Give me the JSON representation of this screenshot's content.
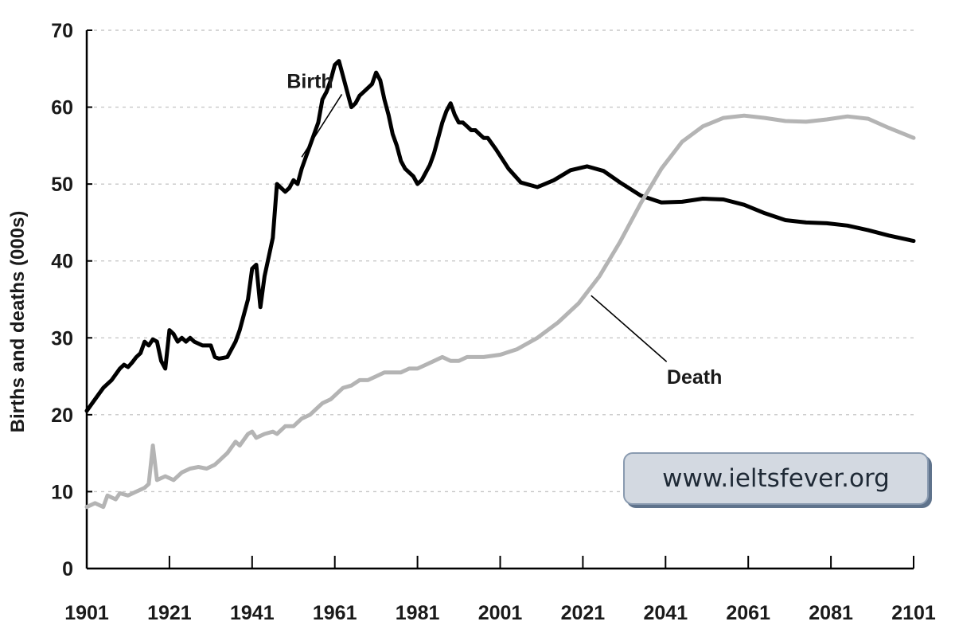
{
  "chart_data": {
    "type": "line",
    "ylabel": "Births and deaths (000s)",
    "ylim": [
      0,
      70
    ],
    "yticks": [
      0,
      10,
      20,
      30,
      40,
      50,
      60,
      70
    ],
    "xlim": [
      1901,
      2101
    ],
    "xticks": [
      1901,
      1921,
      1941,
      1961,
      1981,
      2001,
      2021,
      2041,
      2061,
      2081,
      2101
    ],
    "grid": true,
    "series": [
      {
        "name": "Birth",
        "color": "#000000",
        "points": [
          [
            1901,
            20.5
          ],
          [
            1903,
            22
          ],
          [
            1905,
            23.5
          ],
          [
            1907,
            24.5
          ],
          [
            1909,
            26
          ],
          [
            1910,
            26.5
          ],
          [
            1911,
            26.2
          ],
          [
            1912,
            26.8
          ],
          [
            1913,
            27.5
          ],
          [
            1914,
            28
          ],
          [
            1915,
            29.5
          ],
          [
            1916,
            29
          ],
          [
            1917,
            29.8
          ],
          [
            1918,
            29.5
          ],
          [
            1919,
            27
          ],
          [
            1920,
            26
          ],
          [
            1921,
            31
          ],
          [
            1922,
            30.5
          ],
          [
            1923,
            29.5
          ],
          [
            1924,
            30
          ],
          [
            1925,
            29.5
          ],
          [
            1926,
            30
          ],
          [
            1927,
            29.5
          ],
          [
            1929,
            29
          ],
          [
            1931,
            29
          ],
          [
            1932,
            27.5
          ],
          [
            1933,
            27.3
          ],
          [
            1935,
            27.5
          ],
          [
            1937,
            29.5
          ],
          [
            1938,
            31
          ],
          [
            1939,
            33
          ],
          [
            1940,
            35
          ],
          [
            1941,
            39
          ],
          [
            1942,
            39.5
          ],
          [
            1943,
            34
          ],
          [
            1944,
            38
          ],
          [
            1945,
            40.5
          ],
          [
            1946,
            43
          ],
          [
            1947,
            50
          ],
          [
            1948,
            49.5
          ],
          [
            1949,
            49
          ],
          [
            1950,
            49.5
          ],
          [
            1951,
            50.5
          ],
          [
            1952,
            50
          ],
          [
            1953,
            52
          ],
          [
            1954,
            53.5
          ],
          [
            1955,
            55
          ],
          [
            1956,
            56.5
          ],
          [
            1957,
            58
          ],
          [
            1958,
            61
          ],
          [
            1959,
            62
          ],
          [
            1960,
            63.5
          ],
          [
            1961,
            65.5
          ],
          [
            1962,
            66
          ],
          [
            1963,
            64
          ],
          [
            1964,
            62
          ],
          [
            1965,
            60
          ],
          [
            1966,
            60.5
          ],
          [
            1967,
            61.5
          ],
          [
            1968,
            62
          ],
          [
            1969,
            62.5
          ],
          [
            1970,
            63
          ],
          [
            1971,
            64.5
          ],
          [
            1972,
            63.5
          ],
          [
            1973,
            61
          ],
          [
            1974,
            59
          ],
          [
            1975,
            56.5
          ],
          [
            1976,
            55
          ],
          [
            1977,
            53
          ],
          [
            1978,
            52
          ],
          [
            1979,
            51.5
          ],
          [
            1980,
            51
          ],
          [
            1981,
            50
          ],
          [
            1982,
            50.5
          ],
          [
            1983,
            51.5
          ],
          [
            1984,
            52.5
          ],
          [
            1985,
            54
          ],
          [
            1986,
            56
          ],
          [
            1987,
            58
          ],
          [
            1988,
            59.5
          ],
          [
            1989,
            60.5
          ],
          [
            1990,
            59
          ],
          [
            1991,
            58
          ],
          [
            1992,
            58
          ],
          [
            1993,
            57.5
          ],
          [
            1994,
            57
          ],
          [
            1995,
            57
          ],
          [
            1996,
            56.5
          ],
          [
            1997,
            56
          ],
          [
            1998,
            56
          ],
          [
            2000,
            54.5
          ],
          [
            2003,
            52
          ],
          [
            2006,
            50.2
          ],
          [
            2010,
            49.6
          ],
          [
            2014,
            50.5
          ],
          [
            2018,
            51.8
          ],
          [
            2022,
            52.3
          ],
          [
            2026,
            51.7
          ],
          [
            2030,
            50.2
          ],
          [
            2035,
            48.5
          ],
          [
            2040,
            47.6
          ],
          [
            2045,
            47.7
          ],
          [
            2050,
            48.1
          ],
          [
            2055,
            48
          ],
          [
            2060,
            47.3
          ],
          [
            2065,
            46.2
          ],
          [
            2070,
            45.3
          ],
          [
            2075,
            45
          ],
          [
            2080,
            44.9
          ],
          [
            2085,
            44.6
          ],
          [
            2090,
            44
          ],
          [
            2095,
            43.3
          ],
          [
            2101,
            42.6
          ]
        ]
      },
      {
        "name": "Death",
        "color": "#b4b4b4",
        "points": [
          [
            1901,
            8
          ],
          [
            1903,
            8.5
          ],
          [
            1905,
            8
          ],
          [
            1906,
            9.5
          ],
          [
            1908,
            9
          ],
          [
            1909,
            9.8
          ],
          [
            1911,
            9.5
          ],
          [
            1913,
            10
          ],
          [
            1915,
            10.5
          ],
          [
            1916,
            11
          ],
          [
            1917,
            16
          ],
          [
            1918,
            11.5
          ],
          [
            1920,
            12
          ],
          [
            1922,
            11.5
          ],
          [
            1924,
            12.5
          ],
          [
            1926,
            13
          ],
          [
            1928,
            13.2
          ],
          [
            1930,
            13
          ],
          [
            1932,
            13.5
          ],
          [
            1933,
            14
          ],
          [
            1935,
            15
          ],
          [
            1937,
            16.5
          ],
          [
            1938,
            16
          ],
          [
            1940,
            17.5
          ],
          [
            1941,
            17.8
          ],
          [
            1942,
            17
          ],
          [
            1944,
            17.5
          ],
          [
            1946,
            17.8
          ],
          [
            1947,
            17.5
          ],
          [
            1949,
            18.5
          ],
          [
            1951,
            18.5
          ],
          [
            1953,
            19.5
          ],
          [
            1955,
            20
          ],
          [
            1957,
            21
          ],
          [
            1958,
            21.5
          ],
          [
            1960,
            22
          ],
          [
            1961,
            22.5
          ],
          [
            1963,
            23.5
          ],
          [
            1965,
            23.8
          ],
          [
            1967,
            24.5
          ],
          [
            1969,
            24.5
          ],
          [
            1971,
            25
          ],
          [
            1973,
            25.5
          ],
          [
            1975,
            25.5
          ],
          [
            1977,
            25.5
          ],
          [
            1979,
            26
          ],
          [
            1981,
            26
          ],
          [
            1983,
            26.5
          ],
          [
            1985,
            27
          ],
          [
            1987,
            27.5
          ],
          [
            1989,
            27
          ],
          [
            1991,
            27
          ],
          [
            1993,
            27.5
          ],
          [
            1995,
            27.5
          ],
          [
            1997,
            27.5
          ],
          [
            2001,
            27.8
          ],
          [
            2005,
            28.5
          ],
          [
            2010,
            30
          ],
          [
            2015,
            32
          ],
          [
            2020,
            34.5
          ],
          [
            2025,
            38
          ],
          [
            2030,
            42.5
          ],
          [
            2035,
            47.5
          ],
          [
            2040,
            52
          ],
          [
            2045,
            55.5
          ],
          [
            2050,
            57.5
          ],
          [
            2055,
            58.6
          ],
          [
            2060,
            58.9
          ],
          [
            2065,
            58.6
          ],
          [
            2070,
            58.2
          ],
          [
            2075,
            58.1
          ],
          [
            2080,
            58.4
          ],
          [
            2085,
            58.8
          ],
          [
            2090,
            58.5
          ],
          [
            2095,
            57.3
          ],
          [
            2101,
            56
          ]
        ]
      }
    ],
    "annotations": [
      {
        "text": "Birth",
        "series": "Birth",
        "label_at": [
          1955,
          62.5
        ],
        "point_at": [
          1953,
          53.5
        ]
      },
      {
        "text": "Death",
        "series": "Death",
        "label_at": [
          2048,
          24
        ],
        "point_at": [
          2023,
          35.5
        ]
      }
    ]
  },
  "watermark": {
    "text": "www.ieltsfever.org"
  }
}
